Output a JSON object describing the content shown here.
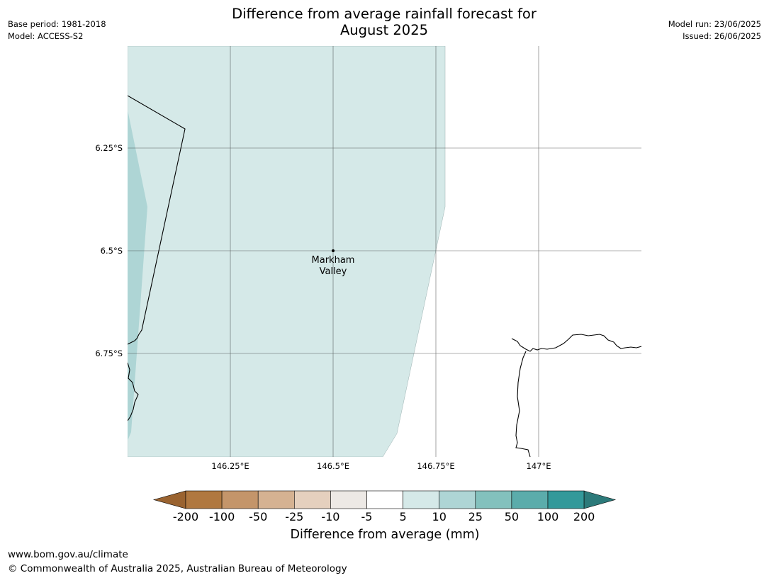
{
  "title": {
    "line1": "Difference from average rainfall forecast for",
    "line2": "August 2025"
  },
  "meta_left": {
    "base_period": "Base period: 1981-2018",
    "model": "Model: ACCESS-S2"
  },
  "meta_right": {
    "model_run": "Model run: 23/06/2025",
    "issued": "Issued: 26/06/2025"
  },
  "map": {
    "lat_labels": [
      "6.25°S",
      "6.5°S",
      "6.75°S"
    ],
    "lon_labels": [
      "146.25°E",
      "146.5°E",
      "146.75°E",
      "147°E"
    ],
    "place": {
      "line1": "Markham",
      "line2": "Valley"
    }
  },
  "colorbar": {
    "title": "Difference from average (mm)",
    "tick_labels": [
      "-200",
      "-100",
      "-50",
      "-25",
      "-10",
      "-5",
      "5",
      "10",
      "25",
      "50",
      "100",
      "200"
    ],
    "colors": [
      "#9a6330",
      "#b07840",
      "#c4956a",
      "#d5b292",
      "#e5d0be",
      "#ede9e5",
      "#ffffff",
      "#d5e9e8",
      "#aed5d5",
      "#83c1bd",
      "#5bacab",
      "#33999a",
      "#2c7a7a"
    ]
  },
  "footer": {
    "url": "www.bom.gov.au/climate",
    "copyright": "© Commonwealth of Australia 2025, Australian Bureau of Meteorology"
  }
}
